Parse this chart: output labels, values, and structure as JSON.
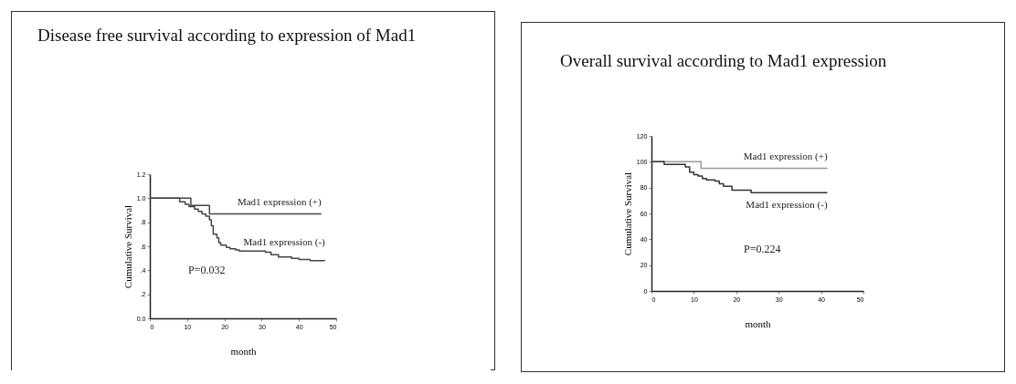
{
  "chart_data": [
    {
      "type": "step",
      "title": "Disease free survival according to expression of Mad1",
      "xlabel": "month",
      "ylabel": "Cumulative Survival",
      "xlim": [
        0,
        50
      ],
      "xticks": [
        0,
        10,
        20,
        30,
        40,
        50
      ],
      "ylim": [
        0,
        1.2
      ],
      "yticks": [
        {
          "value": 0,
          "label": "0.0"
        },
        {
          "value": 0.2,
          "label": ".2"
        },
        {
          "value": 0.4,
          "label": ".4"
        },
        {
          "value": 0.6,
          "label": ".6"
        },
        {
          "value": 0.8,
          "label": ".8"
        },
        {
          "value": 1,
          "label": "1.0"
        },
        {
          "value": 1.2,
          "label": "1.2"
        }
      ],
      "annotations": [
        "P=0.032"
      ],
      "series": [
        {
          "name": "Mad1 expression (+)",
          "color": "#444444",
          "x": [
            0,
            11,
            16,
            46
          ],
          "values": [
            1.0,
            0.94,
            0.87,
            0.87
          ]
        },
        {
          "name": "Mad1 expression (-)",
          "color": "#444444",
          "x": [
            0,
            8,
            9.5,
            10.5,
            12,
            13,
            14,
            15,
            16,
            16.5,
            17,
            18,
            18.5,
            19,
            20.5,
            21.5,
            23,
            24,
            31,
            32.5,
            34.5,
            38,
            40,
            43,
            47
          ],
          "values": [
            1.0,
            0.97,
            0.95,
            0.93,
            0.91,
            0.89,
            0.87,
            0.85,
            0.82,
            0.77,
            0.7,
            0.67,
            0.63,
            0.61,
            0.59,
            0.58,
            0.57,
            0.56,
            0.55,
            0.53,
            0.51,
            0.5,
            0.49,
            0.48,
            0.48
          ]
        }
      ]
    },
    {
      "type": "step",
      "title": "Overall survival according to Mad1 expression",
      "xlabel": "month",
      "ylabel": "Cumulative Survival",
      "xlim": [
        0,
        50
      ],
      "xticks": [
        0,
        10,
        20,
        30,
        40,
        50
      ],
      "ylim": [
        0,
        120
      ],
      "yticks": [
        0,
        20,
        40,
        60,
        80,
        100,
        120
      ],
      "annotations": [
        "P=0.224"
      ],
      "series": [
        {
          "name": "Mad1 expression (+)",
          "color": "#999999",
          "x": [
            0,
            11.7,
            41.5
          ],
          "values": [
            100,
            95,
            95
          ]
        },
        {
          "name": "Mad1 expression (-)",
          "color": "#333333",
          "x": [
            0,
            3,
            8,
            9,
            10,
            11,
            12,
            13,
            15,
            16,
            17,
            19,
            23.5,
            41.5
          ],
          "values": [
            100,
            98,
            96,
            92,
            90,
            89,
            87,
            86,
            85,
            83,
            81,
            78,
            76,
            76
          ]
        }
      ]
    }
  ]
}
